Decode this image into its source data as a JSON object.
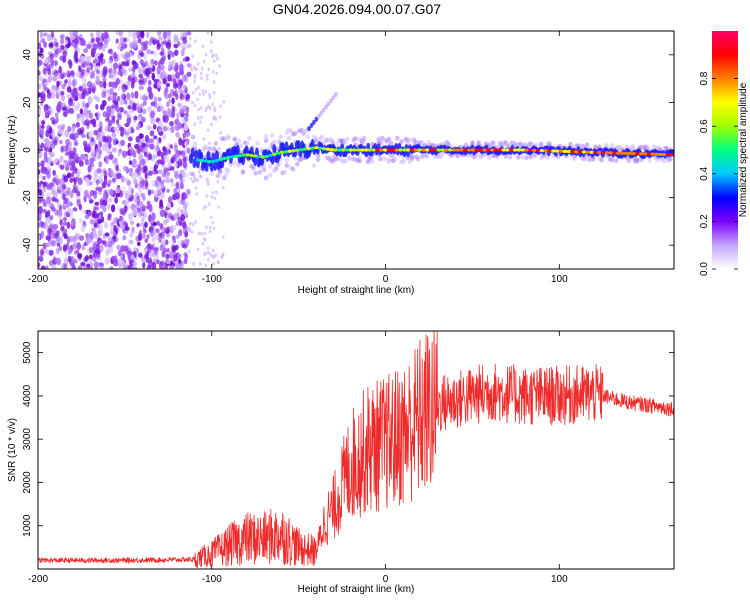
{
  "title": "GN04.2026.094.00.07.G07",
  "chart_data": [
    {
      "type": "heatmap",
      "name": "spectrogram",
      "xlabel": "Height of straight line (km)",
      "ylabel": "Frequency (Hz)",
      "xlim": [
        -200,
        166
      ],
      "ylim": [
        -50,
        50
      ],
      "xticks": [
        -200,
        -100,
        0,
        100
      ],
      "yticks": [
        -40,
        -20,
        0,
        20,
        40
      ],
      "noise_region_km": [
        -200,
        -113
      ],
      "signal_band": [
        {
          "x": -110,
          "y": -4
        },
        {
          "x": -100,
          "y": -5
        },
        {
          "x": -90,
          "y": -3
        },
        {
          "x": -80,
          "y": -2
        },
        {
          "x": -70,
          "y": -3
        },
        {
          "x": -60,
          "y": -1
        },
        {
          "x": -50,
          "y": 0
        },
        {
          "x": -40,
          "y": 1
        },
        {
          "x": -30,
          "y": 0
        },
        {
          "x": -20,
          "y": 0
        },
        {
          "x": 0,
          "y": 0
        },
        {
          "x": 40,
          "y": 0
        },
        {
          "x": 80,
          "y": 0
        },
        {
          "x": 120,
          "y": -1
        },
        {
          "x": 166,
          "y": -2
        }
      ],
      "colorbar": {
        "label": "Normalized spectral amplitude",
        "range": [
          0,
          1
        ],
        "ticks": [
          "0.0",
          "0.2",
          "0.4",
          "0.6",
          "0.8"
        ],
        "colors": [
          "#ffffff",
          "#c6a6ff",
          "#7c00ff",
          "#0000ff",
          "#00c8ff",
          "#00ff80",
          "#a0ff00",
          "#ffff00",
          "#ff8000",
          "#ff0000",
          "#ff0066"
        ]
      }
    },
    {
      "type": "line",
      "name": "snr",
      "xlabel": "Height of straight line (km)",
      "ylabel": "SNR (10 * v/v)",
      "xlim": [
        -200,
        166
      ],
      "ylim": [
        0,
        5500
      ],
      "xticks": [
        -200,
        -100,
        0,
        100
      ],
      "yticks": [
        1000,
        2000,
        3000,
        4000,
        5000
      ],
      "color": "#ee2a2a",
      "series": [
        {
          "x": -200,
          "y": 200
        },
        {
          "x": -150,
          "y": 200
        },
        {
          "x": -110,
          "y": 220
        },
        {
          "x": -100,
          "y": 350
        },
        {
          "x": -90,
          "y": 550
        },
        {
          "x": -80,
          "y": 700
        },
        {
          "x": -70,
          "y": 700
        },
        {
          "x": -60,
          "y": 800
        },
        {
          "x": -50,
          "y": 500
        },
        {
          "x": -40,
          "y": 400
        },
        {
          "x": -35,
          "y": 1100
        },
        {
          "x": -30,
          "y": 1400
        },
        {
          "x": -20,
          "y": 2400
        },
        {
          "x": -10,
          "y": 2800
        },
        {
          "x": 0,
          "y": 2900
        },
        {
          "x": 10,
          "y": 3100
        },
        {
          "x": 20,
          "y": 3500
        },
        {
          "x": 30,
          "y": 3800
        },
        {
          "x": 40,
          "y": 3900
        },
        {
          "x": 50,
          "y": 4000
        },
        {
          "x": 60,
          "y": 4100
        },
        {
          "x": 80,
          "y": 4000
        },
        {
          "x": 100,
          "y": 4000
        },
        {
          "x": 120,
          "y": 4050
        },
        {
          "x": 140,
          "y": 3850
        },
        {
          "x": 166,
          "y": 3700
        }
      ]
    }
  ]
}
